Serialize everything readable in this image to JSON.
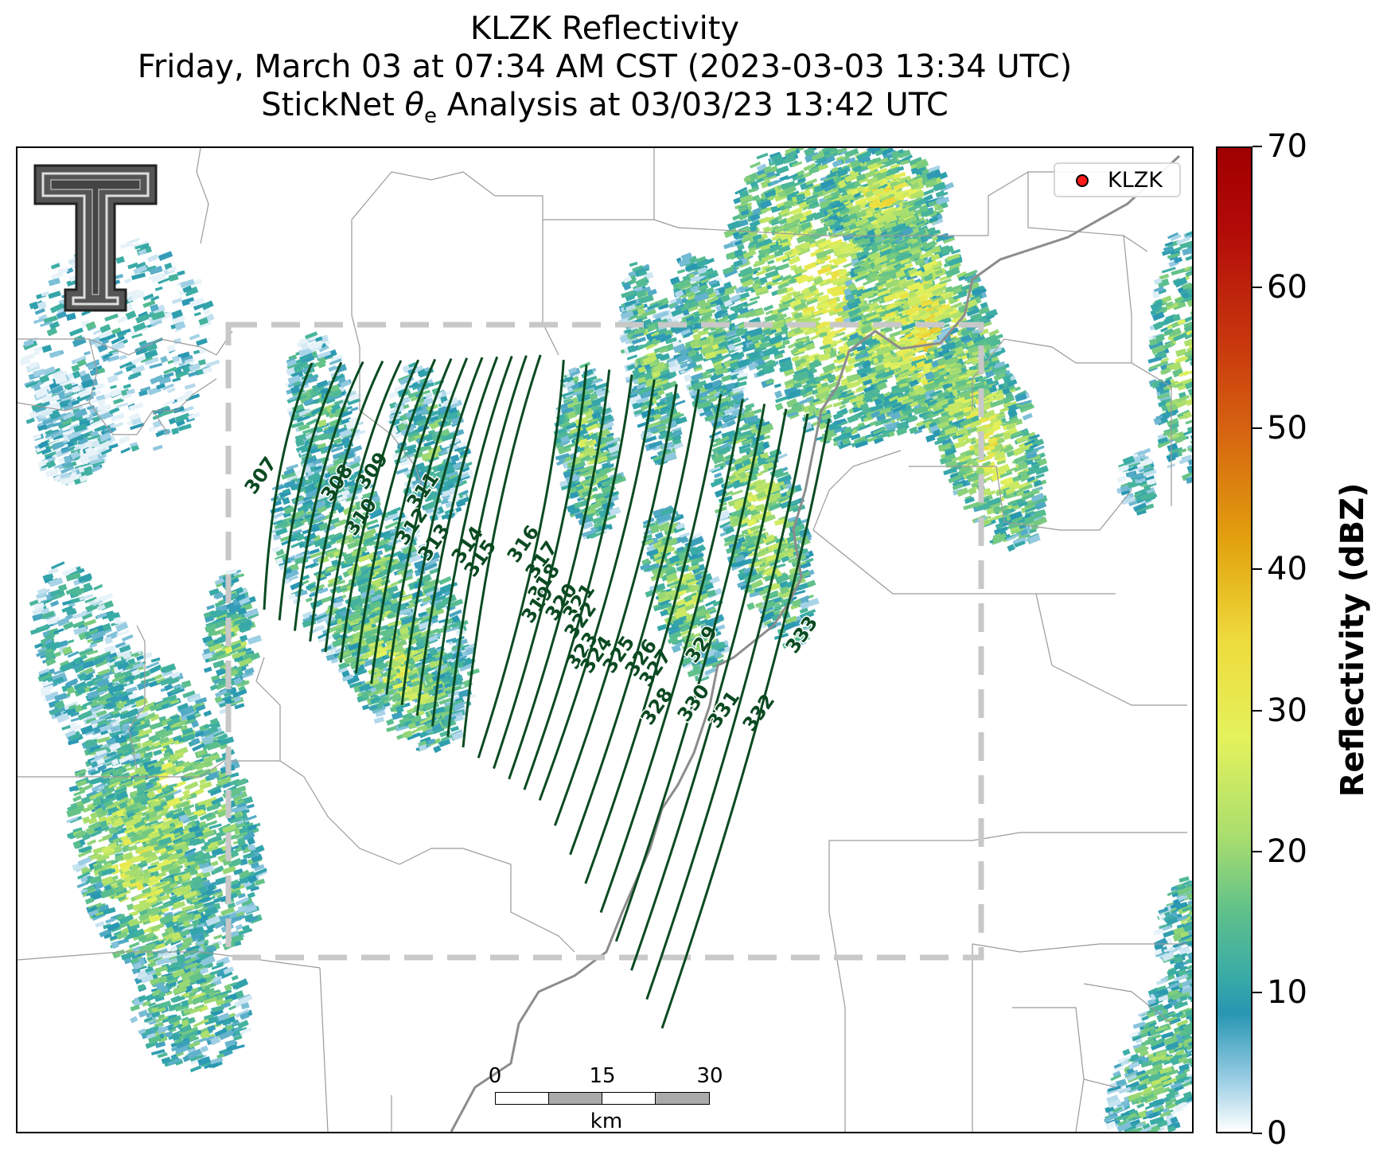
{
  "title": {
    "line1": "KLZK Reflectivity",
    "line2": "Friday, March 03 at 07:34 AM CST (2023-03-03 13:34 UTC)",
    "line3_pre": "StickNet ",
    "line3_sym": "θ",
    "line3_sub": "e",
    "line3_post": " Analysis at 03/03/23 13:42 UTC"
  },
  "legend": {
    "label": "KLZK",
    "marker_color": "#ff1a1a"
  },
  "scale_bar": {
    "ticks": [
      "0",
      "15",
      "30"
    ],
    "unit": "km"
  },
  "colorbar": {
    "title": "Reflectivity (dBZ)",
    "ticks": [
      "0",
      "10",
      "20",
      "30",
      "40",
      "50",
      "60",
      "70"
    ],
    "min": 0,
    "max": 70
  },
  "contour_labels": [
    "307",
    "308",
    "309",
    "310",
    "311",
    "312",
    "313",
    "314",
    "315",
    "316",
    "317",
    "318",
    "319",
    "320",
    "321",
    "322",
    "323",
    "324",
    "325",
    "326",
    "327",
    "328",
    "329",
    "330",
    "331",
    "332",
    "333"
  ],
  "colors": {
    "contour": "#0b4a22",
    "analysis_box": "#c8c8c8",
    "county_lines": "#9a9a9a",
    "river": "#8c8c8c"
  },
  "icons": {
    "logo": "texas-tech-double-t-logo"
  }
}
